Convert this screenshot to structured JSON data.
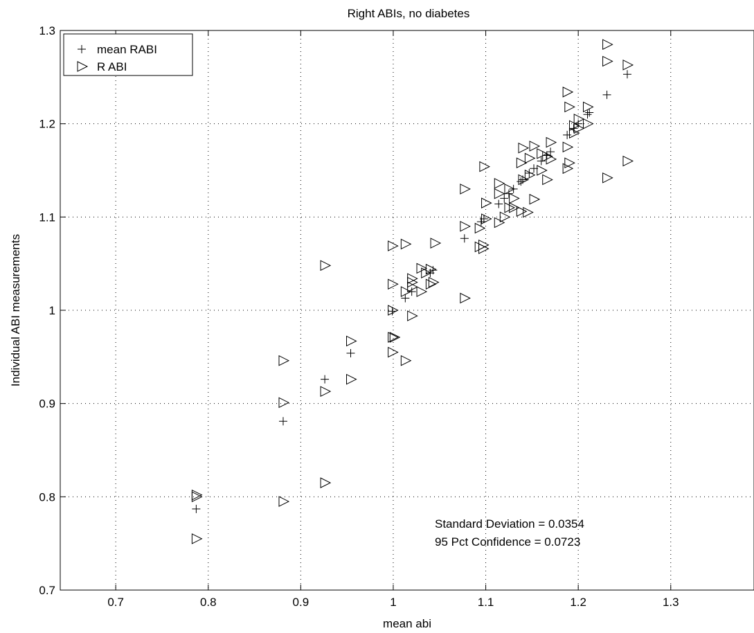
{
  "chart_data": {
    "type": "scatter",
    "title": "Right ABIs, no diabetes",
    "xlabel": "mean abi",
    "ylabel": "Individual ABI measurements",
    "xlim": [
      0.64,
      1.39
    ],
    "ylim": [
      0.7,
      1.3
    ],
    "xticks": [
      0.7,
      0.8,
      0.9,
      1.0,
      1.1,
      1.2,
      1.3
    ],
    "xtick_labels": [
      "0.7",
      "0.8",
      "0.9",
      "1",
      "1.1",
      "1.2",
      "1.3"
    ],
    "yticks": [
      0.7,
      0.8,
      0.9,
      1.0,
      1.1,
      1.2,
      1.3
    ],
    "ytick_labels": [
      "0.7",
      "0.8",
      "0.9",
      "1",
      "1.1",
      "1.2",
      "1.3"
    ],
    "grid": true,
    "legend_position": "top-left",
    "series": [
      {
        "name": "mean RABI",
        "marker": "plus",
        "x": [
          0.787,
          0.881,
          0.926,
          0.954,
          0.999,
          1.013,
          1.02,
          1.04,
          1.043,
          1.077,
          1.095,
          1.098,
          1.114,
          1.12,
          1.125,
          1.13,
          1.138,
          1.14,
          1.147,
          1.152,
          1.16,
          1.166,
          1.17,
          1.188,
          1.195,
          1.2,
          1.21,
          1.212,
          1.231,
          1.253
        ],
        "y": [
          0.787,
          0.881,
          0.926,
          0.954,
          0.999,
          1.013,
          1.02,
          1.04,
          1.043,
          1.077,
          1.095,
          1.098,
          1.114,
          1.12,
          1.125,
          1.13,
          1.138,
          1.14,
          1.147,
          1.152,
          1.16,
          1.166,
          1.17,
          1.188,
          1.195,
          1.2,
          1.21,
          1.212,
          1.231,
          1.253
        ]
      },
      {
        "name": "R ABI",
        "marker": "triangle-right",
        "x": [
          0.787,
          0.787,
          0.787,
          0.881,
          0.881,
          0.881,
          0.926,
          0.926,
          0.926,
          0.954,
          0.954,
          0.999,
          0.999,
          0.999,
          0.999,
          0.999,
          1.001,
          1.013,
          1.013,
          1.013,
          1.02,
          1.02,
          1.02,
          1.02,
          1.03,
          1.03,
          1.035,
          1.04,
          1.04,
          1.043,
          1.045,
          1.077,
          1.077,
          1.077,
          1.093,
          1.093,
          1.097,
          1.097,
          1.098,
          1.1,
          1.1,
          1.114,
          1.114,
          1.114,
          1.12,
          1.125,
          1.125,
          1.13,
          1.13,
          1.138,
          1.138,
          1.14,
          1.14,
          1.145,
          1.147,
          1.147,
          1.152,
          1.152,
          1.16,
          1.16,
          1.166,
          1.166,
          1.17,
          1.17,
          1.188,
          1.188,
          1.188,
          1.19,
          1.19,
          1.195,
          1.195,
          1.2,
          1.2,
          1.21,
          1.21,
          1.231,
          1.231,
          1.231,
          1.253,
          1.253
        ],
        "y": [
          0.755,
          0.8,
          0.802,
          0.795,
          0.901,
          0.946,
          0.815,
          0.913,
          1.048,
          0.926,
          0.967,
          0.955,
          0.971,
          1.0,
          1.028,
          1.069,
          0.971,
          0.946,
          1.02,
          1.071,
          0.994,
          1.025,
          1.034,
          1.03,
          1.045,
          1.02,
          1.04,
          1.044,
          1.028,
          1.03,
          1.072,
          1.013,
          1.09,
          1.13,
          1.068,
          1.088,
          1.066,
          1.07,
          1.154,
          1.098,
          1.115,
          1.094,
          1.125,
          1.136,
          1.1,
          1.11,
          1.13,
          1.12,
          1.11,
          1.106,
          1.158,
          1.14,
          1.174,
          1.105,
          1.145,
          1.163,
          1.119,
          1.176,
          1.15,
          1.168,
          1.14,
          1.165,
          1.18,
          1.162,
          1.152,
          1.175,
          1.234,
          1.158,
          1.218,
          1.19,
          1.198,
          1.195,
          1.205,
          1.2,
          1.218,
          1.142,
          1.267,
          1.285,
          1.16,
          1.263
        ]
      }
    ],
    "annotations": [
      "Standard Deviation = 0.0354",
      "95 Pct Confidence = 0.0723"
    ]
  }
}
